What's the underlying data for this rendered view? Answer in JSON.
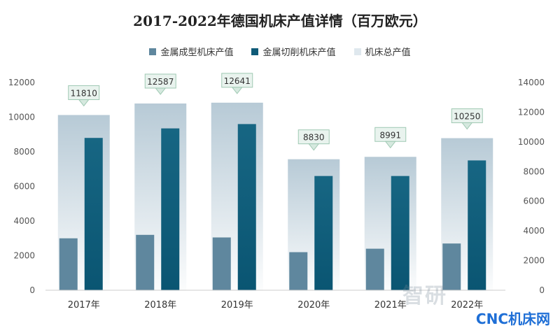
{
  "chart_data": {
    "type": "bar",
    "title": "2017-2022年德国机床产值详情（百万欧元）",
    "categories": [
      "2017年",
      "2018年",
      "2019年",
      "2020年",
      "2021年",
      "2022年"
    ],
    "series": [
      {
        "name": "金属成型机床产值",
        "axis": "left",
        "values": [
          3000,
          3200,
          3050,
          2200,
          2400,
          2700
        ]
      },
      {
        "name": "金属切削机床产值",
        "axis": "left",
        "values": [
          8800,
          9350,
          9600,
          6600,
          6600,
          7500
        ]
      },
      {
        "name": "机床总产值",
        "axis": "right",
        "values": [
          11810,
          12587,
          12641,
          8830,
          8991,
          10250
        ]
      }
    ],
    "left_axis": {
      "ylim": [
        0,
        12000
      ],
      "ticks": [
        0,
        2000,
        4000,
        6000,
        8000,
        10000,
        12000
      ]
    },
    "right_axis": {
      "ylim": [
        0,
        14000
      ],
      "ticks": [
        0,
        2000,
        4000,
        6000,
        8000,
        10000,
        12000,
        14000
      ]
    },
    "data_labels": [
      "11810",
      "12587",
      "12641",
      "8830",
      "8991",
      "10250"
    ],
    "legend_position": "top",
    "grid": false
  },
  "colors": {
    "forming": "#5f879e",
    "cutting": "#0f5b78",
    "total": "#b9cdd8"
  },
  "watermark": "智研",
  "brand": "CNC机床网"
}
